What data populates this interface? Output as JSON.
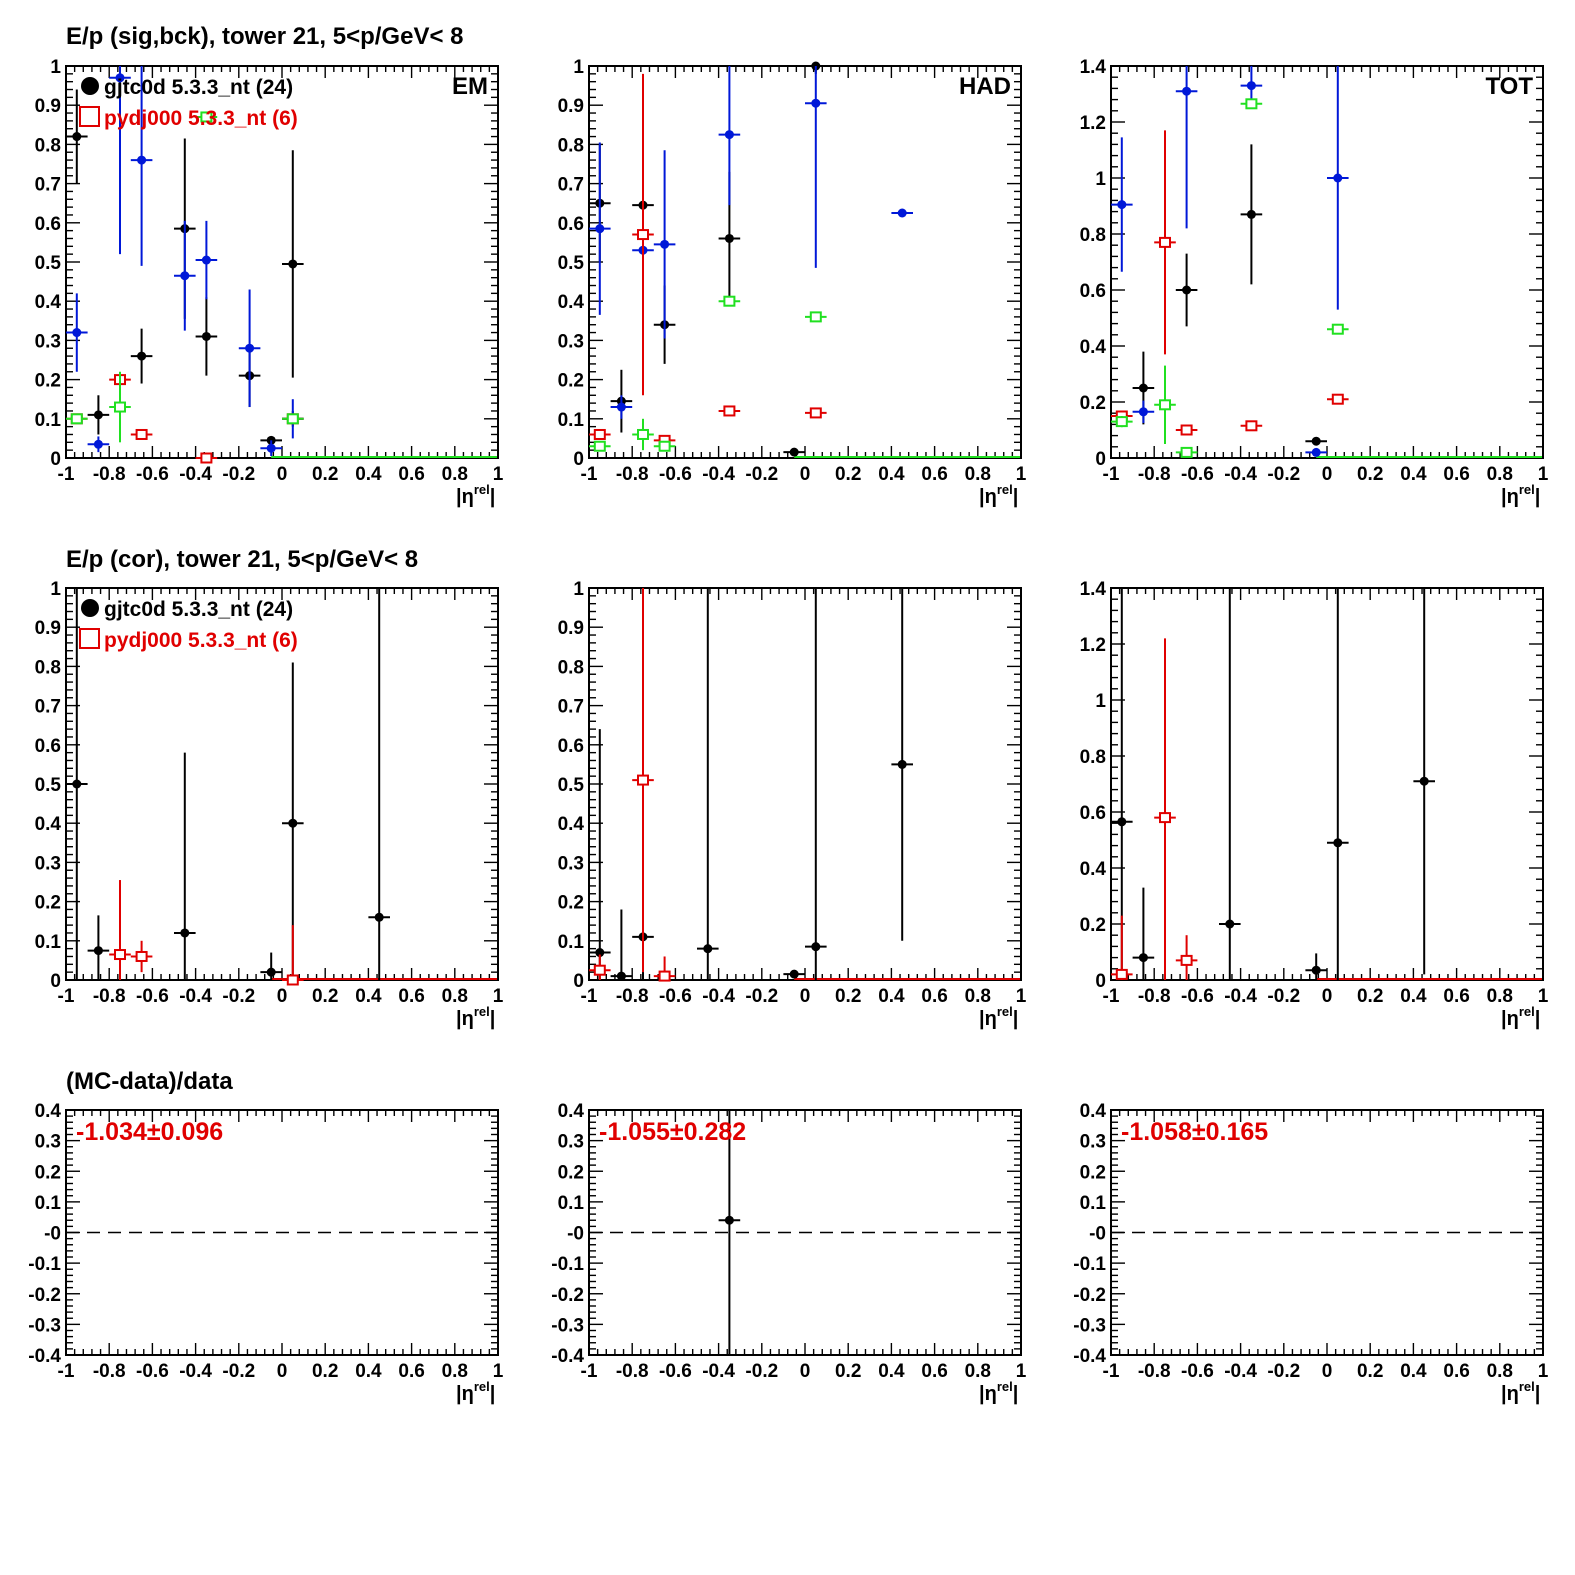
{
  "colors": {
    "black": "#000000",
    "red": "#e00000",
    "blue": "#0018d8",
    "green": "#20e020"
  },
  "row_titles": [
    "E/p (sig,bck), tower 21,  5<p/GeV< 8",
    "E/p (cor), tower 21,  5<p/GeV< 8",
    "(MC-data)/data"
  ],
  "legend": {
    "data": "gjtc0d 5.3.3_nt (24)",
    "mc": "pydj000 5.3.3_nt (6)"
  },
  "chart_data": [
    {
      "type": "scatter",
      "panel": "row1-EM",
      "corner_label": "EM",
      "xlabel": "|η^rel|",
      "xlim": [
        -1,
        1
      ],
      "ylim": [
        0,
        1
      ],
      "xticks": [
        "-1",
        "-0.8",
        "-0.6",
        "-0.4",
        "-0.2",
        "0",
        "0.2",
        "0.4",
        "0.6",
        "0.8",
        "1"
      ],
      "yticks": [
        "0",
        "0.1",
        "0.2",
        "0.3",
        "0.4",
        "0.5",
        "0.6",
        "0.7",
        "0.8",
        "0.9",
        "1"
      ],
      "series": [
        {
          "name": "gjtc0d 5.3.3_nt (24)",
          "color": "black",
          "marker": "filled-circle",
          "points": [
            [
              -0.95,
              0.82,
              0.12
            ],
            [
              -0.85,
              0.11,
              0.05
            ],
            [
              -0.65,
              0.26,
              0.07
            ],
            [
              -0.45,
              0.585,
              0.23
            ],
            [
              -0.35,
              0.31,
              0.1
            ],
            [
              -0.15,
              0.21,
              0.08
            ],
            [
              -0.05,
              0.045,
              0.01
            ],
            [
              0.05,
              0.495,
              0.29
            ],
            [
              0.05,
              0.1,
              0.02
            ]
          ]
        },
        {
          "color": "blue",
          "marker": "filled-circle",
          "points": [
            [
              -0.95,
              0.32,
              0.1
            ],
            [
              -0.85,
              0.035,
              0.02
            ],
            [
              -0.75,
              0.97,
              0.45
            ],
            [
              -0.65,
              0.76,
              0.27
            ],
            [
              -0.45,
              0.465,
              0.14
            ],
            [
              -0.35,
              0.505,
              0.1
            ],
            [
              -0.15,
              0.28,
              0.15
            ],
            [
              -0.05,
              0.025,
              0.02
            ],
            [
              0.05,
              0.1,
              0.05
            ]
          ]
        },
        {
          "name": "pydj000 5.3.3_nt (6)",
          "color": "red",
          "marker": "open-square",
          "points": [
            [
              -0.95,
              0.1,
              0.01
            ],
            [
              -0.75,
              0.2,
              0.01
            ],
            [
              -0.65,
              0.06,
              0.01
            ],
            [
              -0.35,
              0.0,
              0.0
            ],
            [
              0.05,
              0.1,
              0.01
            ]
          ]
        },
        {
          "color": "green",
          "marker": "open-square",
          "points": [
            [
              -0.95,
              0.1,
              0.01
            ],
            [
              -0.75,
              0.13,
              0.09
            ],
            [
              -0.35,
              0.87,
              0.01
            ],
            [
              0.05,
              0.1,
              0.01
            ]
          ]
        }
      ]
    },
    {
      "type": "scatter",
      "panel": "row1-HAD",
      "corner_label": "HAD",
      "xlabel": "|η^rel|",
      "xlim": [
        -1,
        1
      ],
      "ylim": [
        0,
        1
      ],
      "xticks": [
        "-1",
        "-0.8",
        "-0.6",
        "-0.4",
        "-0.2",
        "0",
        "0.2",
        "0.4",
        "0.6",
        "0.8",
        "1"
      ],
      "yticks": [
        "0",
        "0.1",
        "0.2",
        "0.3",
        "0.4",
        "0.5",
        "0.6",
        "0.7",
        "0.8",
        "0.9",
        "1"
      ],
      "series": [
        {
          "color": "black",
          "marker": "filled-circle",
          "points": [
            [
              -0.95,
              0.65,
              0.15
            ],
            [
              -0.85,
              0.145,
              0.08
            ],
            [
              -0.75,
              0.645,
              0.11
            ],
            [
              -0.65,
              0.34,
              0.1
            ],
            [
              -0.35,
              0.56,
              0.17
            ],
            [
              -0.05,
              0.015,
              0.01
            ],
            [
              0.05,
              1.0,
              0.02
            ]
          ]
        },
        {
          "color": "blue",
          "marker": "filled-circle",
          "points": [
            [
              -0.95,
              0.585,
              0.22
            ],
            [
              -0.85,
              0.13,
              0.03
            ],
            [
              -0.75,
              0.53,
              0.1
            ],
            [
              -0.65,
              0.545,
              0.24
            ],
            [
              -0.35,
              0.825,
              0.18
            ],
            [
              0.05,
              0.905,
              0.42
            ],
            [
              0.45,
              0.625,
              0.0
            ]
          ]
        },
        {
          "color": "red",
          "marker": "open-square",
          "points": [
            [
              -0.95,
              0.06,
              0.01
            ],
            [
              -0.75,
              0.57,
              0.41
            ],
            [
              -0.65,
              0.045,
              0.01
            ],
            [
              -0.35,
              0.12,
              0.01
            ],
            [
              0.05,
              0.115,
              0.01
            ]
          ]
        },
        {
          "color": "green",
          "marker": "open-square",
          "points": [
            [
              -0.95,
              0.03,
              0.01
            ],
            [
              -0.75,
              0.06,
              0.04
            ],
            [
              -0.65,
              0.03,
              0.01
            ],
            [
              -0.35,
              0.4,
              0.01
            ],
            [
              0.05,
              0.36,
              0.01
            ]
          ]
        }
      ]
    },
    {
      "type": "scatter",
      "panel": "row1-TOT",
      "corner_label": "TOT",
      "xlabel": "|η^rel|",
      "xlim": [
        -1,
        1
      ],
      "ylim": [
        0,
        1.4
      ],
      "xticks": [
        "-1",
        "-0.8",
        "-0.6",
        "-0.4",
        "-0.2",
        "0",
        "0.2",
        "0.4",
        "0.6",
        "0.8",
        "1"
      ],
      "yticks": [
        "0",
        "0.2",
        "0.4",
        "0.6",
        "0.8",
        "1",
        "1.2",
        "1.4"
      ],
      "series": [
        {
          "color": "black",
          "marker": "filled-circle",
          "points": [
            [
              -0.85,
              0.25,
              0.13
            ],
            [
              -0.65,
              0.6,
              0.13
            ],
            [
              -0.35,
              0.87,
              0.25
            ],
            [
              -0.05,
              0.06,
              0.01
            ]
          ]
        },
        {
          "color": "blue",
          "marker": "filled-circle",
          "points": [
            [
              -0.95,
              0.905,
              0.24
            ],
            [
              -0.85,
              0.165,
              0.04
            ],
            [
              -0.65,
              1.31,
              0.49
            ],
            [
              -0.35,
              1.33,
              0.07
            ],
            [
              -0.05,
              0.02,
              0.01
            ],
            [
              0.05,
              1.0,
              0.47
            ]
          ]
        },
        {
          "color": "red",
          "marker": "open-square",
          "points": [
            [
              -0.95,
              0.15,
              0.01
            ],
            [
              -0.75,
              0.77,
              0.4
            ],
            [
              -0.65,
              0.1,
              0.01
            ],
            [
              -0.35,
              0.115,
              0.01
            ],
            [
              0.05,
              0.21,
              0.01
            ]
          ]
        },
        {
          "color": "green",
          "marker": "open-square",
          "points": [
            [
              -0.95,
              0.13,
              0.02
            ],
            [
              -0.75,
              0.19,
              0.14
            ],
            [
              -0.65,
              0.02,
              0.01
            ],
            [
              -0.35,
              1.265,
              0.01
            ],
            [
              0.05,
              0.46,
              0.01
            ]
          ]
        }
      ]
    },
    {
      "type": "scatter",
      "panel": "row2-EM",
      "xlabel": "|η^rel|",
      "xlim": [
        -1,
        1
      ],
      "ylim": [
        0,
        1
      ],
      "xticks": [
        "-1",
        "-0.8",
        "-0.6",
        "-0.4",
        "-0.2",
        "0",
        "0.2",
        "0.4",
        "0.6",
        "0.8",
        "1"
      ],
      "yticks": [
        "0",
        "0.1",
        "0.2",
        "0.3",
        "0.4",
        "0.5",
        "0.6",
        "0.7",
        "0.8",
        "0.9",
        "1"
      ],
      "series": [
        {
          "name": "gjtc0d 5.3.3_nt (24)",
          "color": "black",
          "marker": "filled-circle",
          "points": [
            [
              -0.95,
              0.5,
              0.52
            ],
            [
              -0.85,
              0.075,
              0.09
            ],
            [
              -0.45,
              0.12,
              0.46
            ],
            [
              -0.05,
              0.02,
              0.05
            ],
            [
              0.05,
              0.4,
              0.41
            ],
            [
              0.45,
              0.16,
              0.84
            ]
          ]
        },
        {
          "name": "pydj000 5.3.3_nt (6)",
          "color": "red",
          "marker": "open-square",
          "points": [
            [
              -0.75,
              0.065,
              0.19
            ],
            [
              -0.65,
              0.06,
              0.04
            ],
            [
              0.05,
              0.0,
              0.14
            ]
          ]
        }
      ]
    },
    {
      "type": "scatter",
      "panel": "row2-HAD",
      "xlabel": "|η^rel|",
      "xlim": [
        -1,
        1
      ],
      "ylim": [
        0,
        1
      ],
      "xticks": [
        "-1",
        "-0.8",
        "-0.6",
        "-0.4",
        "-0.2",
        "0",
        "0.2",
        "0.4",
        "0.6",
        "0.8",
        "1"
      ],
      "yticks": [
        "0",
        "0.1",
        "0.2",
        "0.3",
        "0.4",
        "0.5",
        "0.6",
        "0.7",
        "0.8",
        "0.9",
        "1"
      ],
      "series": [
        {
          "color": "black",
          "marker": "filled-circle",
          "points": [
            [
              -0.95,
              0.07,
              0.57
            ],
            [
              -0.85,
              0.01,
              0.17
            ],
            [
              -0.75,
              0.11,
              0.6
            ],
            [
              -0.45,
              0.08,
              0.92
            ],
            [
              -0.05,
              0.015,
              0.01
            ],
            [
              0.05,
              0.085,
              0.92
            ],
            [
              0.45,
              0.55,
              0.45
            ]
          ]
        },
        {
          "color": "red",
          "marker": "open-square",
          "points": [
            [
              -0.95,
              0.025,
              0.04
            ],
            [
              -0.75,
              0.51,
              0.49
            ],
            [
              -0.65,
              0.01,
              0.05
            ]
          ]
        }
      ]
    },
    {
      "type": "scatter",
      "panel": "row2-TOT",
      "xlabel": "|η^rel|",
      "xlim": [
        -1,
        1
      ],
      "ylim": [
        0,
        1.4
      ],
      "xticks": [
        "-1",
        "-0.8",
        "-0.6",
        "-0.4",
        "-0.2",
        "0",
        "0.2",
        "0.4",
        "0.6",
        "0.8",
        "1"
      ],
      "yticks": [
        "0",
        "0.2",
        "0.4",
        "0.6",
        "0.8",
        "1",
        "1.2",
        "1.4"
      ],
      "series": [
        {
          "color": "black",
          "marker": "filled-circle",
          "points": [
            [
              -0.95,
              0.565,
              0.84
            ],
            [
              -0.85,
              0.08,
              0.25
            ],
            [
              -0.45,
              0.2,
              1.2
            ],
            [
              -0.05,
              0.035,
              0.06
            ],
            [
              0.05,
              0.49,
              0.91
            ],
            [
              0.45,
              0.71,
              0.69
            ]
          ]
        },
        {
          "color": "red",
          "marker": "open-square",
          "points": [
            [
              -0.95,
              0.02,
              0.21
            ],
            [
              -0.75,
              0.58,
              0.64
            ],
            [
              -0.65,
              0.07,
              0.09
            ]
          ]
        }
      ]
    },
    {
      "type": "scatter",
      "panel": "row3-EM",
      "annotation": "-1.034±0.096",
      "xlabel": "|η^rel|",
      "xlim": [
        -1,
        1
      ],
      "ylim": [
        -0.4,
        0.4
      ],
      "xticks": [
        "-1",
        "-0.8",
        "-0.6",
        "-0.4",
        "-0.2",
        "0",
        "0.2",
        "0.4",
        "0.6",
        "0.8",
        "1"
      ],
      "yticks": [
        "-0.4",
        "-0.3",
        "-0.2",
        "-0.1",
        "-0",
        "0.1",
        "0.2",
        "0.3",
        "0.4"
      ],
      "reference_line": 0,
      "series": []
    },
    {
      "type": "scatter",
      "panel": "row3-HAD",
      "annotation": "-1.055±0.282",
      "xlabel": "|η^rel|",
      "xlim": [
        -1,
        1
      ],
      "ylim": [
        -0.4,
        0.4
      ],
      "xticks": [
        "-1",
        "-0.8",
        "-0.6",
        "-0.4",
        "-0.2",
        "0",
        "0.2",
        "0.4",
        "0.6",
        "0.8",
        "1"
      ],
      "yticks": [
        "-0.4",
        "-0.3",
        "-0.2",
        "-0.1",
        "-0",
        "0.1",
        "0.2",
        "0.3",
        "0.4"
      ],
      "reference_line": 0,
      "series": [
        {
          "color": "black",
          "marker": "filled-circle",
          "points": [
            [
              -0.35,
              0.04,
              0.6
            ]
          ]
        }
      ]
    },
    {
      "type": "scatter",
      "panel": "row3-TOT",
      "annotation": "-1.058±0.165",
      "xlabel": "|η^rel|",
      "xlim": [
        -1,
        1
      ],
      "ylim": [
        -0.4,
        0.4
      ],
      "xticks": [
        "-1",
        "-0.8",
        "-0.6",
        "-0.4",
        "-0.2",
        "0",
        "0.2",
        "0.4",
        "0.6",
        "0.8",
        "1"
      ],
      "yticks": [
        "-0.4",
        "-0.3",
        "-0.2",
        "-0.1",
        "-0",
        "0.1",
        "0.2",
        "0.3",
        "0.4"
      ],
      "reference_line": 0,
      "series": []
    }
  ]
}
